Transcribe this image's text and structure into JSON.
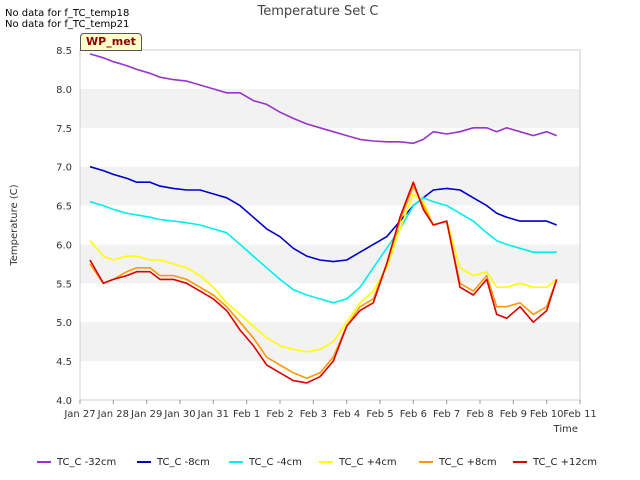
{
  "messages": [
    "No data for f_TC_temp18",
    "No data for f_TC_temp21"
  ],
  "badge": "WP_met",
  "chart_data": {
    "type": "line",
    "title": "Temperature Set C",
    "xlabel": "Time",
    "ylabel": "Temperature (C)",
    "ylim": [
      4.0,
      8.5
    ],
    "xlim": [
      0,
      15
    ],
    "yticks": [
      "4.0",
      "4.5",
      "5.0",
      "5.5",
      "6.0",
      "6.5",
      "7.0",
      "7.5",
      "8.0",
      "8.5"
    ],
    "xticks": [
      "Jan 27",
      "Jan 28",
      "Jan 29",
      "Jan 30",
      "Jan 31",
      "Feb 1",
      "Feb 2",
      "Feb 3",
      "Feb 4",
      "Feb 5",
      "Feb 6",
      "Feb 7",
      "Feb 8",
      "Feb 9",
      "Feb 10",
      "Feb 11"
    ],
    "grid": "alternating horizontal bands",
    "legend_position": "bottom",
    "x": [
      0.3,
      0.7,
      1.0,
      1.4,
      1.7,
      2.1,
      2.4,
      2.8,
      3.2,
      3.6,
      4.0,
      4.4,
      4.8,
      5.2,
      5.6,
      6.0,
      6.4,
      6.8,
      7.2,
      7.6,
      8.0,
      8.4,
      8.8,
      9.2,
      9.6,
      10.0,
      10.3,
      10.6,
      11.0,
      11.4,
      11.8,
      12.2,
      12.5,
      12.8,
      13.2,
      13.6,
      14.0,
      14.3
    ],
    "series": [
      {
        "name": "TC_C -32cm",
        "color": "#9933cc",
        "values": [
          8.45,
          8.4,
          8.35,
          8.3,
          8.25,
          8.2,
          8.15,
          8.12,
          8.1,
          8.05,
          8.0,
          7.95,
          7.95,
          7.85,
          7.8,
          7.7,
          7.62,
          7.55,
          7.5,
          7.45,
          7.4,
          7.35,
          7.33,
          7.32,
          7.32,
          7.3,
          7.35,
          7.45,
          7.42,
          7.45,
          7.5,
          7.5,
          7.45,
          7.5,
          7.45,
          7.4,
          7.45,
          7.4
        ]
      },
      {
        "name": "TC_C -8cm",
        "color": "#0000cc",
        "values": [
          7.0,
          6.95,
          6.9,
          6.85,
          6.8,
          6.8,
          6.75,
          6.72,
          6.7,
          6.7,
          6.65,
          6.6,
          6.5,
          6.35,
          6.2,
          6.1,
          5.95,
          5.85,
          5.8,
          5.78,
          5.8,
          5.9,
          6.0,
          6.1,
          6.3,
          6.5,
          6.6,
          6.7,
          6.72,
          6.7,
          6.6,
          6.5,
          6.4,
          6.35,
          6.3,
          6.3,
          6.3,
          6.25
        ]
      },
      {
        "name": "TC_C -4cm",
        "color": "#00eeee",
        "values": [
          6.55,
          6.5,
          6.45,
          6.4,
          6.38,
          6.35,
          6.32,
          6.3,
          6.28,
          6.25,
          6.2,
          6.15,
          6.0,
          5.85,
          5.7,
          5.55,
          5.42,
          5.35,
          5.3,
          5.25,
          5.3,
          5.45,
          5.7,
          5.95,
          6.2,
          6.5,
          6.6,
          6.55,
          6.5,
          6.4,
          6.3,
          6.15,
          6.05,
          6.0,
          5.95,
          5.9,
          5.9,
          5.9
        ]
      },
      {
        "name": "TC_C +4cm",
        "color": "#ffff00",
        "values": [
          6.05,
          5.85,
          5.8,
          5.85,
          5.85,
          5.8,
          5.8,
          5.75,
          5.7,
          5.6,
          5.45,
          5.25,
          5.1,
          4.95,
          4.8,
          4.7,
          4.65,
          4.62,
          4.65,
          4.75,
          5.0,
          5.25,
          5.4,
          5.7,
          6.2,
          6.65,
          6.55,
          6.25,
          6.3,
          5.7,
          5.6,
          5.65,
          5.45,
          5.45,
          5.5,
          5.45,
          5.45,
          5.55
        ]
      },
      {
        "name": "TC_C +8cm",
        "color": "#ff9900",
        "values": [
          5.75,
          5.5,
          5.55,
          5.65,
          5.7,
          5.7,
          5.6,
          5.6,
          5.55,
          5.45,
          5.35,
          5.2,
          5.0,
          4.8,
          4.55,
          4.45,
          4.35,
          4.28,
          4.35,
          4.55,
          4.95,
          5.2,
          5.3,
          5.75,
          6.3,
          6.75,
          6.5,
          6.25,
          6.3,
          5.5,
          5.4,
          5.6,
          5.2,
          5.2,
          5.25,
          5.1,
          5.2,
          5.55
        ]
      },
      {
        "name": "TC_C +12cm",
        "color": "#dd0000",
        "values": [
          5.8,
          5.5,
          5.55,
          5.6,
          5.65,
          5.65,
          5.55,
          5.55,
          5.5,
          5.4,
          5.3,
          5.15,
          4.9,
          4.7,
          4.45,
          4.35,
          4.25,
          4.22,
          4.3,
          4.5,
          4.95,
          5.15,
          5.25,
          5.75,
          6.35,
          6.8,
          6.45,
          6.25,
          6.3,
          5.45,
          5.35,
          5.55,
          5.1,
          5.05,
          5.2,
          5.0,
          5.15,
          5.55
        ]
      }
    ]
  }
}
